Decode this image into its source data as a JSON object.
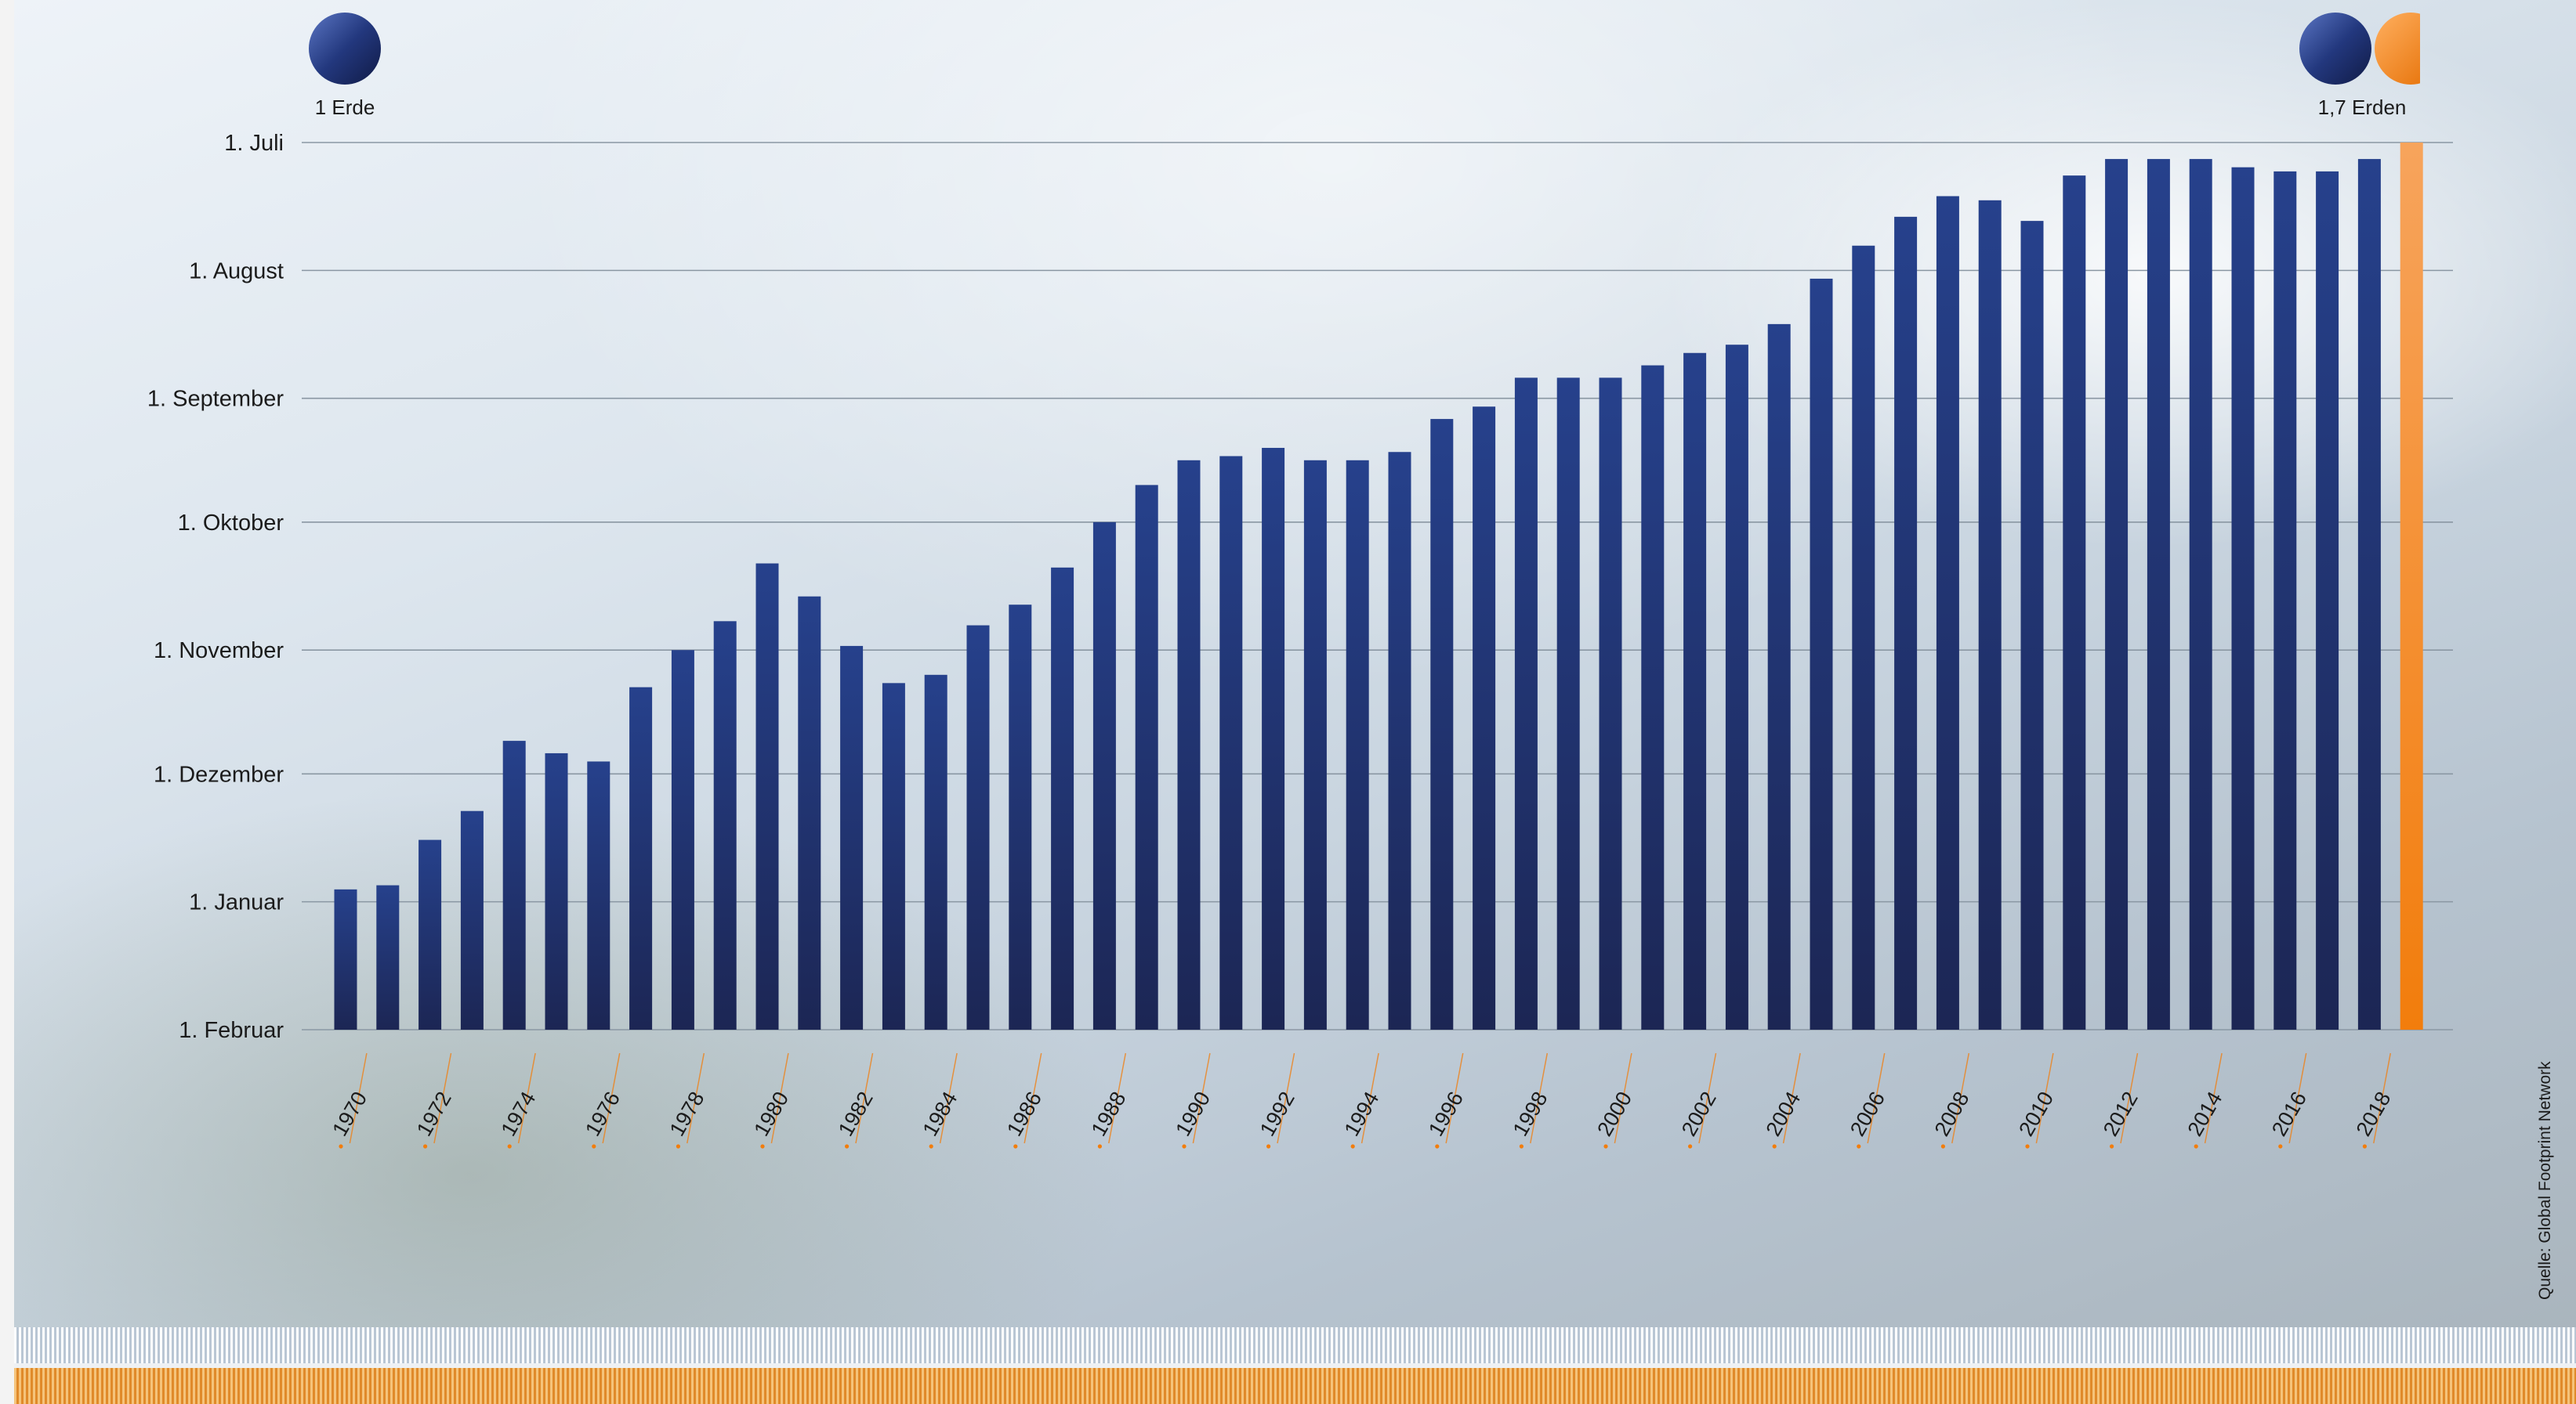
{
  "colors": {
    "bar": "#26418c",
    "bar_dark": "#1c2654",
    "highlight": "#f27d0c",
    "highlight_light": "#f7a45c",
    "grid": "#8a97a3",
    "earth": "#1f3578",
    "text": "#1b1b1b"
  },
  "earths": {
    "left_label": "1 Erde",
    "right_label": "1,7 Erden",
    "left_icon": "earth-circle-icon",
    "right_icon": "earth-circle-and-partial-orange-circle-icon"
  },
  "source": "Quelle: Global Footprint Network",
  "chart_data": {
    "type": "bar",
    "title": "",
    "xlabel": "",
    "ylabel": "",
    "y_axis_reversed": true,
    "y_tick_labels": [
      "1. Juli",
      "1. August",
      "1. September",
      "1. Oktober",
      "1. November",
      "1. Dezember",
      "1. Januar",
      "1. Februar"
    ],
    "y_tick_values": [
      "07-01",
      "08-01",
      "09-01",
      "10-01",
      "11-01",
      "12-01",
      "01-01",
      "02-01"
    ],
    "x_tick_labels": [
      "1970",
      "1972",
      "1974",
      "1976",
      "1978",
      "1980",
      "1982",
      "1984",
      "1986",
      "1988",
      "1990",
      "1992",
      "1994",
      "1996",
      "1998",
      "2000",
      "2002",
      "2004",
      "2006",
      "2008",
      "2010",
      "2012",
      "2014",
      "2016",
      "2018"
    ],
    "categories": [
      "1970",
      "1971",
      "1972",
      "1973",
      "1974",
      "1975",
      "1976",
      "1977",
      "1978",
      "1979",
      "1980",
      "1981",
      "1982",
      "1983",
      "1984",
      "1985",
      "1986",
      "1987",
      "1988",
      "1989",
      "1990",
      "1991",
      "1992",
      "1993",
      "1994",
      "1995",
      "1996",
      "1997",
      "1998",
      "1999",
      "2000",
      "2001",
      "2002",
      "2003",
      "2004",
      "2005",
      "2006",
      "2007",
      "2008",
      "2009",
      "2010",
      "2011",
      "2012",
      "2013",
      "2014",
      "2015",
      "2016",
      "2017",
      "2018",
      "2019"
    ],
    "dates": [
      "12-29",
      "12-28",
      "12-17",
      "12-10",
      "11-23",
      "11-26",
      "11-28",
      "11-10",
      "11-01",
      "10-25",
      "10-11",
      "10-19",
      "10-31",
      "11-09",
      "11-07",
      "10-26",
      "10-21",
      "10-12",
      "10-01",
      "09-22",
      "09-16",
      "09-15",
      "09-13",
      "09-16",
      "09-16",
      "09-14",
      "09-06",
      "09-03",
      "08-27",
      "08-27",
      "08-27",
      "08-24",
      "08-21",
      "08-19",
      "08-14",
      "08-03",
      "07-26",
      "07-19",
      "07-14",
      "07-15",
      "07-20",
      "07-09",
      "07-05",
      "07-05",
      "07-05",
      "07-07",
      "07-08",
      "07-08",
      "07-05",
      "07-01"
    ],
    "highlight_category": "2019",
    "legend": "none",
    "grid": true
  }
}
